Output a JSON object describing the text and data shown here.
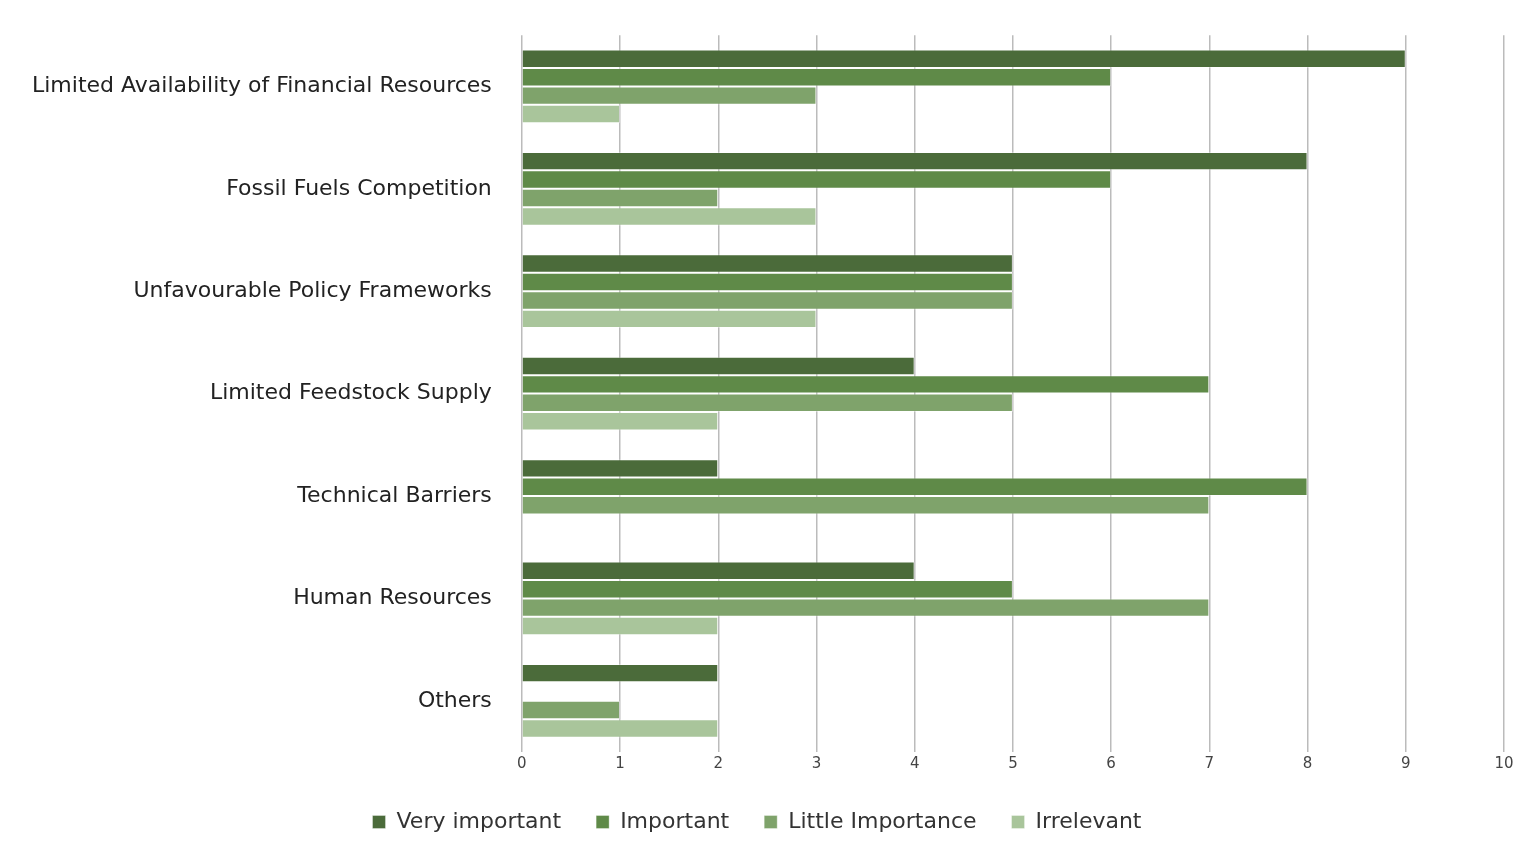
{
  "chart_data": {
    "type": "bar",
    "orientation": "horizontal",
    "categories": [
      "Limited Availability of Financial Resources",
      "Fossil Fuels Competition",
      "Unfavourable Policy Frameworks",
      "Limited Feedstock Supply",
      "Technical Barriers",
      "Human Resources",
      "Others"
    ],
    "series": [
      {
        "name": "Very important",
        "color": "#4b6b3a",
        "values": [
          9,
          8,
          5,
          4,
          2,
          4,
          2
        ]
      },
      {
        "name": "Important",
        "color": "#5f8a48",
        "values": [
          6,
          6,
          5,
          7,
          8,
          5,
          0
        ]
      },
      {
        "name": "Little Importance",
        "color": "#7fa36b",
        "values": [
          3,
          2,
          5,
          5,
          7,
          7,
          1
        ]
      },
      {
        "name": "Irrelevant",
        "color": "#a9c59b",
        "values": [
          1,
          3,
          3,
          2,
          0,
          2,
          2
        ]
      }
    ],
    "xlim": [
      0,
      10
    ],
    "xticks": [
      0,
      1,
      2,
      3,
      4,
      5,
      6,
      7,
      8,
      9,
      10
    ],
    "grid": "x",
    "legend": "bottom"
  }
}
